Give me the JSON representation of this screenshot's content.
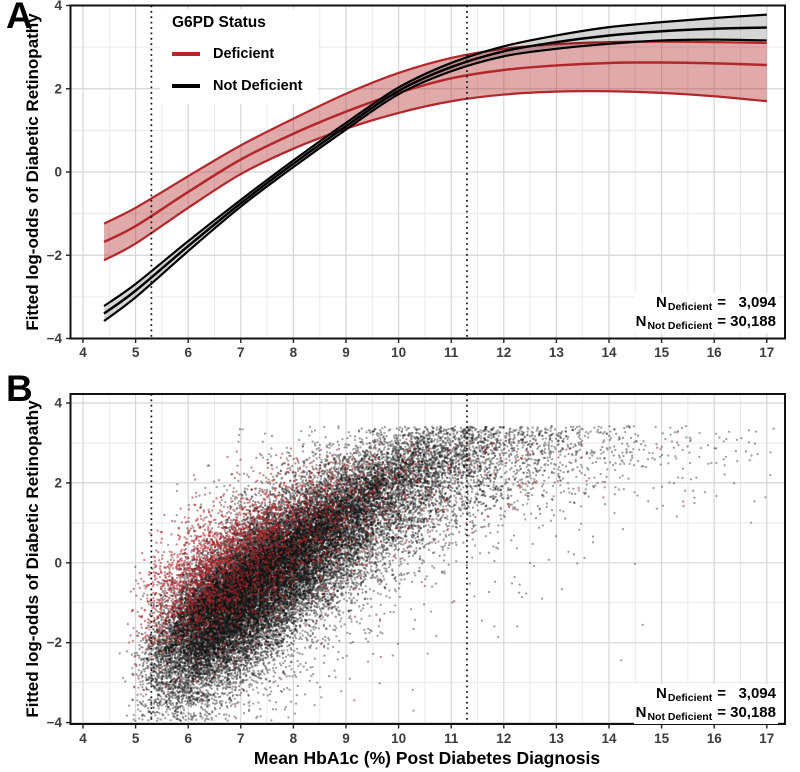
{
  "chart_data": [
    {
      "panel_label": "A",
      "type": "line",
      "ylabel": "Fitted log-odds of Diabetic Retinopathy",
      "xlim": [
        3.76,
        17.35
      ],
      "ylim": [
        -4,
        4
      ],
      "x_tick_values": [
        4,
        5,
        6,
        7,
        8,
        9,
        10,
        11,
        12,
        13,
        14,
        15,
        16,
        17
      ],
      "x_tick_labels": [
        "4",
        "5",
        "6",
        "7",
        "8",
        "9",
        "10",
        "11",
        "12",
        "13",
        "14",
        "15",
        "16",
        "17"
      ],
      "y_tick_values": [
        4,
        2,
        0,
        -2,
        -4
      ],
      "y_tick_labels": [
        "4",
        "2",
        "0",
        "−2",
        "−4"
      ],
      "grid": "on",
      "reference_lines_x": [
        5.3,
        11.3
      ],
      "legend": {
        "title": "G6PD Status",
        "position": "top-left",
        "items": [
          {
            "label": "Deficient",
            "color": "#B2272B"
          },
          {
            "label": "Not Deficient",
            "color": "#000000"
          }
        ]
      },
      "x": [
        4.4,
        5,
        6,
        7,
        8,
        9,
        10,
        11,
        12,
        13,
        14,
        15,
        16,
        17
      ],
      "series": [
        {
          "name": "Deficient",
          "line_color": "#B2272B",
          "band_fill": "rgba(178,39,43,0.40)",
          "center": [
            -1.68,
            -1.3,
            -0.48,
            0.3,
            0.92,
            1.45,
            1.9,
            2.25,
            2.45,
            2.56,
            2.62,
            2.63,
            2.61,
            2.57
          ],
          "upper": [
            -1.24,
            -0.86,
            -0.1,
            0.64,
            1.28,
            1.88,
            2.38,
            2.74,
            2.96,
            3.07,
            3.12,
            3.13,
            3.12,
            3.1
          ],
          "lower": [
            -2.12,
            -1.72,
            -0.86,
            -0.05,
            0.56,
            1.04,
            1.42,
            1.7,
            1.86,
            1.93,
            1.94,
            1.9,
            1.82,
            1.7
          ]
        },
        {
          "name": "Not Deficient",
          "line_color": "#000000",
          "band_fill": "rgba(0,0,0,0.16)",
          "center": [
            -3.4,
            -2.85,
            -1.78,
            -0.75,
            0.2,
            1.1,
            1.95,
            2.52,
            2.9,
            3.12,
            3.28,
            3.38,
            3.44,
            3.47
          ],
          "upper": [
            -3.22,
            -2.69,
            -1.66,
            -0.67,
            0.28,
            1.18,
            2.03,
            2.62,
            3.02,
            3.28,
            3.48,
            3.6,
            3.7,
            3.78
          ],
          "lower": [
            -3.58,
            -3.01,
            -1.9,
            -0.83,
            0.12,
            1.02,
            1.87,
            2.42,
            2.78,
            2.96,
            3.08,
            3.16,
            3.18,
            3.16
          ]
        }
      ],
      "annotation": {
        "lines": [
          {
            "symbol": "N",
            "group": "Deficient",
            "eq": "=",
            "value": "3,094"
          },
          {
            "symbol": "N",
            "group": "Not Deficient",
            "eq": "=",
            "value": "30,188"
          }
        ]
      }
    },
    {
      "panel_label": "B",
      "type": "scatter",
      "xlabel": "Mean HbA1c (%) Post Diabetes Diagnosis",
      "ylabel": "Fitted log-odds of Diabetic Retinopathy",
      "xlim": [
        3.76,
        17.35
      ],
      "ylim": [
        -4.3,
        4.25
      ],
      "x_tick_values": [
        4,
        5,
        6,
        7,
        8,
        9,
        10,
        11,
        12,
        13,
        14,
        15,
        16,
        17
      ],
      "x_tick_labels": [
        "4",
        "5",
        "6",
        "7",
        "8",
        "9",
        "10",
        "11",
        "12",
        "13",
        "14",
        "15",
        "16",
        "17"
      ],
      "y_tick_values": [
        4,
        2,
        0,
        -2,
        -4
      ],
      "y_tick_labels": [
        "4",
        "2",
        "0",
        "−2",
        "−4"
      ],
      "grid": "on",
      "reference_lines_x": [
        5.3,
        11.3
      ],
      "seed": 42,
      "point_radius": 1.15,
      "series": [
        {
          "name": "Not Deficient",
          "n": 30188,
          "point_color": "rgba(20,20,20,0.40)",
          "x_offset": 4.1,
          "x_scale": 3.5,
          "x_sigma": 0.42,
          "noise_mix": {
            "p": 0.86,
            "s1": 0.82,
            "s2": 1.55
          },
          "y_min": -3.97,
          "y_max": 3.42,
          "trend_source": "Not Deficient"
        },
        {
          "name": "Deficient",
          "n": 3094,
          "point_color": "rgba(172,34,38,0.55)",
          "x_offset": 3.95,
          "x_scale": 3.05,
          "x_sigma": 0.42,
          "noise_mix": {
            "p": 0.86,
            "s1": 0.78,
            "s2": 1.45
          },
          "y_min": -3.6,
          "y_max": 3.05,
          "trend_source": "Deficient"
        }
      ],
      "annotation": {
        "lines": [
          {
            "symbol": "N",
            "group": "Deficient",
            "eq": "=",
            "value": "3,094"
          },
          {
            "symbol": "N",
            "group": "Not Deficient",
            "eq": "=",
            "value": "30,188"
          }
        ]
      }
    }
  ]
}
